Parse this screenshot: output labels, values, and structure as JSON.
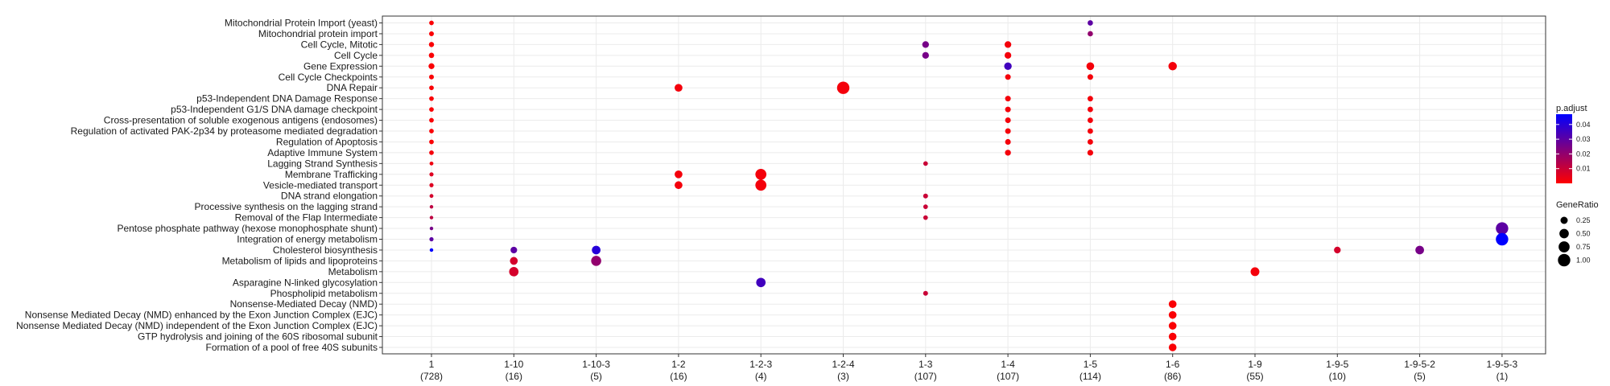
{
  "chart_data": {
    "type": "scatter",
    "x_categories": [
      {
        "label": "1",
        "count": "(728)"
      },
      {
        "label": "1-10",
        "count": "(16)"
      },
      {
        "label": "1-10-3",
        "count": "(5)"
      },
      {
        "label": "1-2",
        "count": "(16)"
      },
      {
        "label": "1-2-3",
        "count": "(4)"
      },
      {
        "label": "1-2-4",
        "count": "(3)"
      },
      {
        "label": "1-3",
        "count": "(107)"
      },
      {
        "label": "1-4",
        "count": "(107)"
      },
      {
        "label": "1-5",
        "count": "(114)"
      },
      {
        "label": "1-6",
        "count": "(86)"
      },
      {
        "label": "1-9",
        "count": "(55)"
      },
      {
        "label": "1-9-5",
        "count": "(10)"
      },
      {
        "label": "1-9-5-2",
        "count": "(5)"
      },
      {
        "label": "1-9-5-3",
        "count": "(1)"
      }
    ],
    "y_categories": [
      "Mitochondrial Protein Import (yeast)",
      "Mitochondrial protein import",
      "Cell Cycle, Mitotic",
      "Cell Cycle",
      "Gene Expression",
      "Cell Cycle Checkpoints",
      "DNA Repair",
      "p53-Independent DNA Damage Response",
      "p53-Independent G1/S DNA damage checkpoint",
      "Cross-presentation of soluble exogenous antigens (endosomes)",
      "Regulation of activated PAK-2p34 by proteasome mediated degradation",
      "Regulation of Apoptosis",
      "Adaptive Immune System",
      "Lagging Strand Synthesis",
      "Membrane Trafficking",
      "Vesicle-mediated transport",
      "DNA strand elongation",
      "Processive synthesis on the lagging strand",
      "Removal of the Flap Intermediate",
      "Pentose phosphate pathway (hexose monophosphate shunt)",
      "Integration of energy metabolism",
      "Cholesterol biosynthesis",
      "Metabolism of lipids and lipoproteins",
      "Metabolism",
      "Asparagine N-linked glycosylation",
      "Phospholipid metabolism",
      "Nonsense-Mediated Decay (NMD)",
      "Nonsense Mediated Decay (NMD) enhanced by the Exon Junction Complex (EJC)",
      "Nonsense Mediated Decay (NMD) independent of the Exon Junction Complex (EJC)",
      "GTP hydrolysis and joining of the 60S ribosomal subunit",
      "Formation of a pool of free 40S subunits"
    ],
    "points": [
      {
        "x": "1",
        "y": "Mitochondrial Protein Import (yeast)",
        "gene_ratio": 0.06,
        "p_adjust": 0.001
      },
      {
        "x": "1",
        "y": "Mitochondrial protein import",
        "gene_ratio": 0.07,
        "p_adjust": 0.001
      },
      {
        "x": "1",
        "y": "Cell Cycle, Mitotic",
        "gene_ratio": 0.09,
        "p_adjust": 0.001
      },
      {
        "x": "1",
        "y": "Cell Cycle",
        "gene_ratio": 0.1,
        "p_adjust": 0.001
      },
      {
        "x": "1",
        "y": "Gene Expression",
        "gene_ratio": 0.14,
        "p_adjust": 0.001
      },
      {
        "x": "1",
        "y": "Cell Cycle Checkpoints",
        "gene_ratio": 0.07,
        "p_adjust": 0.001
      },
      {
        "x": "1",
        "y": "DNA Repair",
        "gene_ratio": 0.06,
        "p_adjust": 0.001
      },
      {
        "x": "1",
        "y": "p53-Independent DNA Damage Response",
        "gene_ratio": 0.06,
        "p_adjust": 0.001
      },
      {
        "x": "1",
        "y": "p53-Independent G1/S DNA damage checkpoint",
        "gene_ratio": 0.06,
        "p_adjust": 0.001
      },
      {
        "x": "1",
        "y": "Cross-presentation of soluble exogenous antigens (endosomes)",
        "gene_ratio": 0.06,
        "p_adjust": 0.001
      },
      {
        "x": "1",
        "y": "Regulation of activated PAK-2p34 by proteasome mediated degradation",
        "gene_ratio": 0.06,
        "p_adjust": 0.001
      },
      {
        "x": "1",
        "y": "Regulation of Apoptosis",
        "gene_ratio": 0.06,
        "p_adjust": 0.001
      },
      {
        "x": "1",
        "y": "Adaptive Immune System",
        "gene_ratio": 0.06,
        "p_adjust": 0.002
      },
      {
        "x": "1",
        "y": "Lagging Strand Synthesis",
        "gene_ratio": 0.03,
        "p_adjust": 0.003
      },
      {
        "x": "1",
        "y": "Membrane Trafficking",
        "gene_ratio": 0.04,
        "p_adjust": 0.006
      },
      {
        "x": "1",
        "y": "Vesicle-mediated transport",
        "gene_ratio": 0.04,
        "p_adjust": 0.006
      },
      {
        "x": "1",
        "y": "DNA strand elongation",
        "gene_ratio": 0.03,
        "p_adjust": 0.008
      },
      {
        "x": "1",
        "y": "Processive synthesis on the lagging strand",
        "gene_ratio": 0.02,
        "p_adjust": 0.012
      },
      {
        "x": "1",
        "y": "Removal of the Flap Intermediate",
        "gene_ratio": 0.02,
        "p_adjust": 0.012
      },
      {
        "x": "1",
        "y": "Pentose phosphate pathway (hexose monophosphate shunt)",
        "gene_ratio": 0.02,
        "p_adjust": 0.025
      },
      {
        "x": "1",
        "y": "Integration of energy metabolism",
        "gene_ratio": 0.04,
        "p_adjust": 0.03
      },
      {
        "x": "1",
        "y": "Cholesterol biosynthesis",
        "gene_ratio": 0.02,
        "p_adjust": 0.047
      },
      {
        "x": "1-10",
        "y": "Cholesterol biosynthesis",
        "gene_ratio": 0.19,
        "p_adjust": 0.03
      },
      {
        "x": "1-10",
        "y": "Metabolism of lipids and lipoproteins",
        "gene_ratio": 0.31,
        "p_adjust": 0.008
      },
      {
        "x": "1-10",
        "y": "Metabolism",
        "gene_ratio": 0.5,
        "p_adjust": 0.008
      },
      {
        "x": "1-10-3",
        "y": "Cholesterol biosynthesis",
        "gene_ratio": 0.4,
        "p_adjust": 0.04
      },
      {
        "x": "1-10-3",
        "y": "Metabolism of lipids and lipoproteins",
        "gene_ratio": 0.6,
        "p_adjust": 0.02
      },
      {
        "x": "1-2",
        "y": "DNA Repair",
        "gene_ratio": 0.31,
        "p_adjust": 0.002
      },
      {
        "x": "1-2",
        "y": "Membrane Trafficking",
        "gene_ratio": 0.31,
        "p_adjust": 0.002
      },
      {
        "x": "1-2",
        "y": "Vesicle-mediated transport",
        "gene_ratio": 0.31,
        "p_adjust": 0.002
      },
      {
        "x": "1-2-3",
        "y": "Membrane Trafficking",
        "gene_ratio": 0.75,
        "p_adjust": 0.002
      },
      {
        "x": "1-2-3",
        "y": "Vesicle-mediated transport",
        "gene_ratio": 0.75,
        "p_adjust": 0.002
      },
      {
        "x": "1-2-3",
        "y": "Asparagine N-linked glycosylation",
        "gene_ratio": 0.5,
        "p_adjust": 0.035
      },
      {
        "x": "1-2-4",
        "y": "DNA Repair",
        "gene_ratio": 1.0,
        "p_adjust": 0.002
      },
      {
        "x": "1-3",
        "y": "Cell Cycle, Mitotic",
        "gene_ratio": 0.2,
        "p_adjust": 0.025
      },
      {
        "x": "1-3",
        "y": "Cell Cycle",
        "gene_ratio": 0.2,
        "p_adjust": 0.025
      },
      {
        "x": "1-3",
        "y": "Lagging Strand Synthesis",
        "gene_ratio": 0.06,
        "p_adjust": 0.01
      },
      {
        "x": "1-3",
        "y": "DNA strand elongation",
        "gene_ratio": 0.07,
        "p_adjust": 0.01
      },
      {
        "x": "1-3",
        "y": "Processive synthesis on the lagging strand",
        "gene_ratio": 0.06,
        "p_adjust": 0.01
      },
      {
        "x": "1-3",
        "y": "Removal of the Flap Intermediate",
        "gene_ratio": 0.06,
        "p_adjust": 0.01
      },
      {
        "x": "1-3",
        "y": "Phospholipid metabolism",
        "gene_ratio": 0.07,
        "p_adjust": 0.01
      },
      {
        "x": "1-4",
        "y": "Cell Cycle, Mitotic",
        "gene_ratio": 0.2,
        "p_adjust": 0.002
      },
      {
        "x": "1-4",
        "y": "Cell Cycle",
        "gene_ratio": 0.2,
        "p_adjust": 0.002
      },
      {
        "x": "1-4",
        "y": "Gene Expression",
        "gene_ratio": 0.28,
        "p_adjust": 0.035
      },
      {
        "x": "1-4",
        "y": "Cell Cycle Checkpoints",
        "gene_ratio": 0.12,
        "p_adjust": 0.002
      },
      {
        "x": "1-4",
        "y": "p53-Independent DNA Damage Response",
        "gene_ratio": 0.12,
        "p_adjust": 0.002
      },
      {
        "x": "1-4",
        "y": "p53-Independent G1/S DNA damage checkpoint",
        "gene_ratio": 0.12,
        "p_adjust": 0.002
      },
      {
        "x": "1-4",
        "y": "Cross-presentation of soluble exogenous antigens (endosomes)",
        "gene_ratio": 0.12,
        "p_adjust": 0.002
      },
      {
        "x": "1-4",
        "y": "Regulation of activated PAK-2p34 by proteasome mediated degradation",
        "gene_ratio": 0.12,
        "p_adjust": 0.002
      },
      {
        "x": "1-4",
        "y": "Regulation of Apoptosis",
        "gene_ratio": 0.12,
        "p_adjust": 0.002
      },
      {
        "x": "1-4",
        "y": "Adaptive Immune System",
        "gene_ratio": 0.14,
        "p_adjust": 0.002
      },
      {
        "x": "1-5",
        "y": "Mitochondrial Protein Import (yeast)",
        "gene_ratio": 0.1,
        "p_adjust": 0.03
      },
      {
        "x": "1-5",
        "y": "Mitochondrial protein import",
        "gene_ratio": 0.1,
        "p_adjust": 0.02
      },
      {
        "x": "1-5",
        "y": "Gene Expression",
        "gene_ratio": 0.3,
        "p_adjust": 0.002
      },
      {
        "x": "1-5",
        "y": "Cell Cycle Checkpoints",
        "gene_ratio": 0.12,
        "p_adjust": 0.002
      },
      {
        "x": "1-5",
        "y": "p53-Independent DNA Damage Response",
        "gene_ratio": 0.11,
        "p_adjust": 0.002
      },
      {
        "x": "1-5",
        "y": "p53-Independent G1/S DNA damage checkpoint",
        "gene_ratio": 0.11,
        "p_adjust": 0.002
      },
      {
        "x": "1-5",
        "y": "Cross-presentation of soluble exogenous antigens (endosomes)",
        "gene_ratio": 0.11,
        "p_adjust": 0.002
      },
      {
        "x": "1-5",
        "y": "Regulation of activated PAK-2p34 by proteasome mediated degradation",
        "gene_ratio": 0.11,
        "p_adjust": 0.002
      },
      {
        "x": "1-5",
        "y": "Regulation of Apoptosis",
        "gene_ratio": 0.11,
        "p_adjust": 0.002
      },
      {
        "x": "1-5",
        "y": "Adaptive Immune System",
        "gene_ratio": 0.13,
        "p_adjust": 0.002
      },
      {
        "x": "1-6",
        "y": "Gene Expression",
        "gene_ratio": 0.38,
        "p_adjust": 0.002
      },
      {
        "x": "1-6",
        "y": "Nonsense-Mediated Decay (NMD)",
        "gene_ratio": 0.3,
        "p_adjust": 0.001
      },
      {
        "x": "1-6",
        "y": "Nonsense Mediated Decay (NMD) enhanced by the Exon Junction Complex (EJC)",
        "gene_ratio": 0.3,
        "p_adjust": 0.001
      },
      {
        "x": "1-6",
        "y": "Nonsense Mediated Decay (NMD) independent of the Exon Junction Complex (EJC)",
        "gene_ratio": 0.3,
        "p_adjust": 0.001
      },
      {
        "x": "1-6",
        "y": "GTP hydrolysis and joining of the 60S ribosomal subunit",
        "gene_ratio": 0.3,
        "p_adjust": 0.001
      },
      {
        "x": "1-6",
        "y": "Formation of a pool of free 40S subunits",
        "gene_ratio": 0.3,
        "p_adjust": 0.001
      },
      {
        "x": "1-9",
        "y": "Metabolism",
        "gene_ratio": 0.42,
        "p_adjust": 0.002
      },
      {
        "x": "1-9-5",
        "y": "Cholesterol biosynthesis",
        "gene_ratio": 0.2,
        "p_adjust": 0.008
      },
      {
        "x": "1-9-5-2",
        "y": "Cholesterol biosynthesis",
        "gene_ratio": 0.4,
        "p_adjust": 0.025
      },
      {
        "x": "1-9-5-3",
        "y": "Pentose phosphate pathway (hexose monophosphate shunt)",
        "gene_ratio": 1.0,
        "p_adjust": 0.03
      },
      {
        "x": "1-9-5-3",
        "y": "Integration of energy metabolism",
        "gene_ratio": 1.0,
        "p_adjust": 0.047
      }
    ],
    "color_scale": {
      "title": "p.adjust",
      "low_color": "#ff0000",
      "high_color": "#0000ff",
      "domain": [
        0,
        0.047
      ],
      "ticks": [
        "0.04",
        "0.03",
        "0.02",
        "0.01"
      ],
      "tick_values": [
        0.04,
        0.03,
        0.02,
        0.01
      ]
    },
    "size_scale": {
      "title": "GeneRatio",
      "ticks": [
        "0.25",
        "0.50",
        "0.75",
        "1.00"
      ],
      "tick_values": [
        0.25,
        0.5,
        0.75,
        1.0
      ]
    },
    "grid": true,
    "legend_position": "right"
  }
}
